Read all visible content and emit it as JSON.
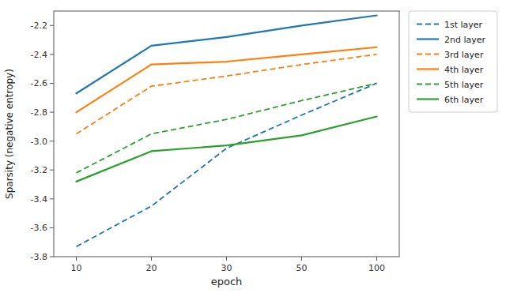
{
  "chart_data": {
    "type": "line",
    "xlabel": "epoch",
    "ylabel": "Sparsity (negative entropy)",
    "categories": [
      "10",
      "20",
      "30",
      "50",
      "100"
    ],
    "series": [
      {
        "name": "1st layer",
        "color": "#1f77b4",
        "line_style": "dashed",
        "values": [
          -3.73,
          -3.45,
          -3.05,
          -2.82,
          -2.6
        ]
      },
      {
        "name": "2nd layer",
        "color": "#1f77b4",
        "line_style": "solid",
        "values": [
          -2.67,
          -2.34,
          -2.28,
          -2.2,
          -2.13
        ]
      },
      {
        "name": "3rd layer",
        "color": "#ff7f0e",
        "line_style": "dashed",
        "values": [
          -2.95,
          -2.62,
          -2.55,
          -2.47,
          -2.4
        ]
      },
      {
        "name": "4th layer",
        "color": "#ff7f0e",
        "line_style": "solid",
        "values": [
          -2.8,
          -2.47,
          -2.45,
          -2.4,
          -2.35
        ]
      },
      {
        "name": "5th layer",
        "color": "#2ca02c",
        "line_style": "dashed",
        "values": [
          -3.22,
          -2.95,
          -2.85,
          -2.72,
          -2.6
        ]
      },
      {
        "name": "6th layer",
        "color": "#2ca02c",
        "line_style": "solid",
        "values": [
          -3.28,
          -3.07,
          -3.03,
          -2.96,
          -2.83
        ]
      }
    ],
    "ylim": [
      -3.8,
      -2.1
    ],
    "yticks": [
      -3.8,
      -3.6,
      -3.4,
      -3.2,
      {
        "value": -3,
        "label": "-3.0"
      },
      -2.8,
      -2.6,
      -2.4,
      -2.2
    ],
    "grid": false,
    "legend": "right"
  }
}
